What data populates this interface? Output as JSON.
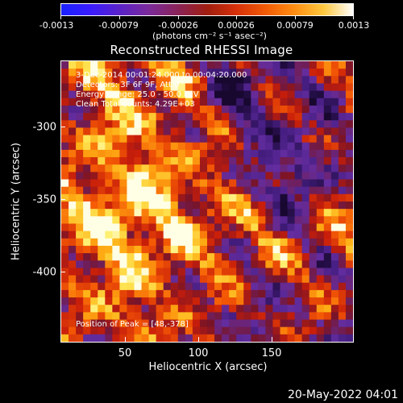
{
  "colorbar": {
    "tick_labels": [
      "-0.0013",
      "-0.00079",
      "-0.00026",
      "0.00026",
      "0.00079",
      "0.0013"
    ],
    "units": "(photons cm⁻² s⁻¹ asec⁻²)"
  },
  "plot": {
    "title": "Reconstructed RHESSI Image",
    "info_lines": [
      " 3-Dec-2014 00:01:24.000 to 00:04:20.000",
      "Detectors: 3F 6F 9F, Att 0",
      "Energy Range: 25.0 - 50.0 keV",
      "Clean     Total counts: 4.29E+03"
    ],
    "peak_text": "Position of Peak = [48,-378]",
    "x_tick_labels": [
      "50",
      "100",
      "150"
    ],
    "y_tick_labels": [
      "-300",
      "-350",
      "-400"
    ],
    "xlabel": "Heliocentric X (arcsec)",
    "ylabel": "Heliocentric Y (arcsec)"
  },
  "footer": {
    "date": "20-May-2022 04:01"
  },
  "colors": {
    "low": "#1a22ff",
    "mid": "#a01e10",
    "high": "#ffffff"
  }
}
